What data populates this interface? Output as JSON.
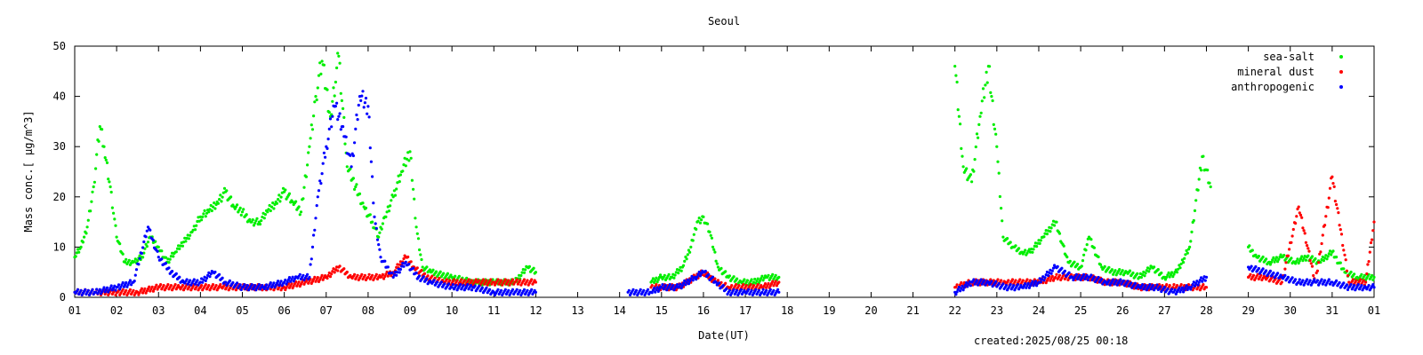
{
  "chart_data": {
    "type": "scatter",
    "title": "Seoul",
    "xlabel": "Date(UT)",
    "ylabel": "Mass conc.[ μg/m^3]",
    "footer": "created:2025/08/25 00:18",
    "xlim": [
      1,
      32
    ],
    "ylim": [
      0,
      50
    ],
    "x_ticks": [
      "01",
      "02",
      "03",
      "04",
      "05",
      "06",
      "07",
      "08",
      "09",
      "10",
      "11",
      "12",
      "13",
      "14",
      "15",
      "16",
      "17",
      "18",
      "19",
      "20",
      "21",
      "22",
      "23",
      "24",
      "25",
      "26",
      "27",
      "28",
      "29",
      "30",
      "31",
      "01"
    ],
    "y_ticks": [
      0,
      10,
      20,
      30,
      40,
      50
    ],
    "grid": false,
    "legend_position": "top-right",
    "series": [
      {
        "name": "sea-salt",
        "color": "#00ee00",
        "points": [
          [
            1.0,
            8
          ],
          [
            1.15,
            10
          ],
          [
            1.3,
            14
          ],
          [
            1.45,
            22
          ],
          [
            1.6,
            34
          ],
          [
            1.7,
            30
          ],
          [
            1.85,
            22
          ],
          [
            2.0,
            12
          ],
          [
            2.2,
            7
          ],
          [
            2.4,
            7
          ],
          [
            2.6,
            8
          ],
          [
            2.8,
            12
          ],
          [
            3.0,
            10
          ],
          [
            3.2,
            7
          ],
          [
            3.4,
            9
          ],
          [
            3.6,
            11
          ],
          [
            3.8,
            13
          ],
          [
            4.0,
            16
          ],
          [
            4.2,
            17
          ],
          [
            4.4,
            19
          ],
          [
            4.6,
            21
          ],
          [
            4.8,
            18
          ],
          [
            5.0,
            17
          ],
          [
            5.2,
            15
          ],
          [
            5.4,
            15
          ],
          [
            5.6,
            17
          ],
          [
            5.8,
            19
          ],
          [
            6.0,
            21
          ],
          [
            6.2,
            19
          ],
          [
            6.4,
            17
          ],
          [
            6.6,
            30
          ],
          [
            6.75,
            40
          ],
          [
            6.9,
            47
          ],
          [
            7.1,
            36
          ],
          [
            7.3,
            48
          ],
          [
            7.5,
            26
          ],
          [
            7.7,
            22
          ],
          [
            7.9,
            18
          ],
          [
            8.1,
            15
          ],
          [
            8.25,
            12
          ],
          [
            8.4,
            16
          ],
          [
            8.6,
            20
          ],
          [
            8.8,
            25
          ],
          [
            9.0,
            29
          ],
          [
            9.15,
            14
          ],
          [
            9.3,
            6
          ],
          [
            9.5,
            5
          ],
          [
            10.0,
            4
          ],
          [
            10.5,
            3
          ],
          [
            11.0,
            3
          ],
          [
            11.5,
            3
          ],
          [
            11.8,
            6
          ],
          [
            12.0,
            5
          ],
          [
            14.75,
            3
          ],
          [
            15.0,
            4
          ],
          [
            15.25,
            4
          ],
          [
            15.5,
            6
          ],
          [
            15.7,
            10
          ],
          [
            15.85,
            15
          ],
          [
            16.0,
            16
          ],
          [
            16.15,
            13
          ],
          [
            16.35,
            6
          ],
          [
            16.6,
            4
          ],
          [
            16.9,
            3
          ],
          [
            17.2,
            3
          ],
          [
            17.5,
            4
          ],
          [
            17.8,
            4
          ],
          [
            22.0,
            46
          ],
          [
            22.2,
            26
          ],
          [
            22.4,
            23
          ],
          [
            22.6,
            36
          ],
          [
            22.8,
            46
          ],
          [
            23.0,
            30
          ],
          [
            23.15,
            12
          ],
          [
            23.4,
            10
          ],
          [
            23.6,
            9
          ],
          [
            23.8,
            9
          ],
          [
            24.1,
            12
          ],
          [
            24.4,
            15
          ],
          [
            24.7,
            7
          ],
          [
            25.0,
            6
          ],
          [
            25.2,
            12
          ],
          [
            25.5,
            6
          ],
          [
            25.8,
            5
          ],
          [
            26.1,
            5
          ],
          [
            26.4,
            4
          ],
          [
            26.7,
            6
          ],
          [
            27.0,
            4
          ],
          [
            27.3,
            5
          ],
          [
            27.6,
            10
          ],
          [
            27.9,
            28
          ],
          [
            28.1,
            22
          ],
          [
            29.0,
            10
          ],
          [
            29.2,
            8
          ],
          [
            29.5,
            7
          ],
          [
            29.8,
            8
          ],
          [
            30.1,
            7
          ],
          [
            30.4,
            8
          ],
          [
            30.7,
            7
          ],
          [
            31.0,
            9
          ],
          [
            31.3,
            5
          ],
          [
            31.6,
            4
          ],
          [
            32.0,
            4
          ]
        ]
      },
      {
        "name": "mineral dust",
        "color": "#ff0000",
        "points": [
          [
            1.0,
            1
          ],
          [
            1.5,
            1
          ],
          [
            2.0,
            1
          ],
          [
            2.5,
            1
          ],
          [
            3.0,
            2
          ],
          [
            3.5,
            2
          ],
          [
            4.0,
            2
          ],
          [
            4.5,
            2
          ],
          [
            5.0,
            2
          ],
          [
            5.5,
            2
          ],
          [
            6.0,
            2
          ],
          [
            6.5,
            3
          ],
          [
            7.0,
            4
          ],
          [
            7.3,
            6
          ],
          [
            7.6,
            4
          ],
          [
            8.0,
            4
          ],
          [
            8.3,
            4
          ],
          [
            8.6,
            5
          ],
          [
            8.9,
            8
          ],
          [
            9.1,
            6
          ],
          [
            9.4,
            4
          ],
          [
            9.8,
            3
          ],
          [
            10.2,
            3
          ],
          [
            10.6,
            3
          ],
          [
            11.0,
            3
          ],
          [
            11.5,
            3
          ],
          [
            12.0,
            3
          ],
          [
            14.75,
            2
          ],
          [
            15.0,
            2
          ],
          [
            15.4,
            2
          ],
          [
            15.8,
            4
          ],
          [
            16.0,
            5
          ],
          [
            16.3,
            3
          ],
          [
            16.6,
            2
          ],
          [
            17.0,
            2
          ],
          [
            17.4,
            2
          ],
          [
            17.8,
            3
          ],
          [
            22.0,
            2
          ],
          [
            22.4,
            3
          ],
          [
            22.8,
            3
          ],
          [
            23.2,
            3
          ],
          [
            23.6,
            3
          ],
          [
            24.0,
            3
          ],
          [
            24.4,
            4
          ],
          [
            24.8,
            4
          ],
          [
            25.2,
            4
          ],
          [
            25.6,
            3
          ],
          [
            26.0,
            3
          ],
          [
            26.4,
            2
          ],
          [
            26.8,
            2
          ],
          [
            27.2,
            2
          ],
          [
            27.6,
            2
          ],
          [
            28.0,
            2
          ],
          [
            29.0,
            4
          ],
          [
            29.4,
            4
          ],
          [
            29.8,
            3
          ],
          [
            30.2,
            18
          ],
          [
            30.6,
            3
          ],
          [
            31.0,
            24
          ],
          [
            31.4,
            3
          ],
          [
            31.8,
            3
          ],
          [
            32.0,
            15
          ]
        ]
      },
      {
        "name": "anthropogenic",
        "color": "#0000ff",
        "points": [
          [
            1.0,
            1
          ],
          [
            1.5,
            1
          ],
          [
            2.0,
            2
          ],
          [
            2.4,
            3
          ],
          [
            2.75,
            14
          ],
          [
            3.0,
            8
          ],
          [
            3.3,
            5
          ],
          [
            3.6,
            3
          ],
          [
            4.0,
            3
          ],
          [
            4.3,
            5
          ],
          [
            4.6,
            3
          ],
          [
            5.0,
            2
          ],
          [
            5.5,
            2
          ],
          [
            6.0,
            3
          ],
          [
            6.3,
            4
          ],
          [
            6.6,
            4
          ],
          [
            6.8,
            20
          ],
          [
            7.0,
            30
          ],
          [
            7.2,
            38
          ],
          [
            7.4,
            34
          ],
          [
            7.6,
            26
          ],
          [
            7.8,
            40
          ],
          [
            8.0,
            38
          ],
          [
            8.15,
            16
          ],
          [
            8.3,
            8
          ],
          [
            8.6,
            4
          ],
          [
            8.9,
            7
          ],
          [
            9.2,
            4
          ],
          [
            9.5,
            3
          ],
          [
            10.0,
            2
          ],
          [
            10.5,
            2
          ],
          [
            11.0,
            1
          ],
          [
            11.5,
            1
          ],
          [
            12.0,
            1
          ],
          [
            14.2,
            1
          ],
          [
            14.75,
            1
          ],
          [
            15.0,
            2
          ],
          [
            15.4,
            2
          ],
          [
            15.8,
            4
          ],
          [
            16.0,
            5
          ],
          [
            16.3,
            3
          ],
          [
            16.6,
            1
          ],
          [
            17.0,
            1
          ],
          [
            17.4,
            1
          ],
          [
            17.8,
            1
          ],
          [
            22.0,
            1
          ],
          [
            22.4,
            3
          ],
          [
            22.8,
            3
          ],
          [
            23.2,
            2
          ],
          [
            23.6,
            2
          ],
          [
            24.0,
            3
          ],
          [
            24.4,
            6
          ],
          [
            24.8,
            4
          ],
          [
            25.2,
            4
          ],
          [
            25.6,
            3
          ],
          [
            26.0,
            3
          ],
          [
            26.4,
            2
          ],
          [
            26.8,
            2
          ],
          [
            27.2,
            1
          ],
          [
            27.6,
            2
          ],
          [
            28.0,
            4
          ],
          [
            29.0,
            6
          ],
          [
            29.4,
            5
          ],
          [
            29.8,
            4
          ],
          [
            30.2,
            3
          ],
          [
            30.6,
            3
          ],
          [
            31.0,
            3
          ],
          [
            31.4,
            2
          ],
          [
            31.8,
            2
          ],
          [
            32.0,
            2
          ]
        ]
      }
    ]
  }
}
